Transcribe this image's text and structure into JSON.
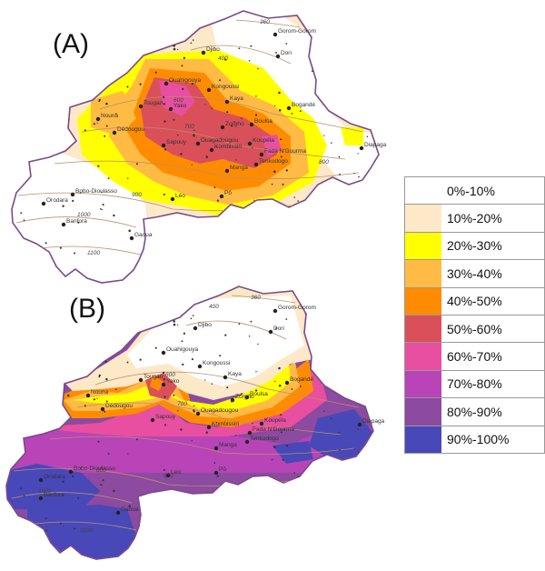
{
  "panels": [
    {
      "label": "(A)"
    },
    {
      "label": "(B)"
    }
  ],
  "legend": {
    "classes": [
      {
        "label": "0%-10%",
        "color": "#ffffff"
      },
      {
        "label": "10%-20%",
        "color": "#fde8c8"
      },
      {
        "label": "20%-30%",
        "color": "#ffff00"
      },
      {
        "label": "30%-40%",
        "color": "#ffbb44"
      },
      {
        "label": "40%-50%",
        "color": "#ff8c00"
      },
      {
        "label": "50%-60%",
        "color": "#d9505a"
      },
      {
        "label": "60%-70%",
        "color": "#e84fa0"
      },
      {
        "label": "70%-80%",
        "color": "#b844b8"
      },
      {
        "label": "80%-90%",
        "color": "#8c4aa0"
      },
      {
        "label": "90%-100%",
        "color": "#4848b8"
      }
    ]
  },
  "towns": [
    {
      "name": "Gorom-Gorom"
    },
    {
      "name": "Djibo"
    },
    {
      "name": "Dori"
    },
    {
      "name": "Ouahigouya"
    },
    {
      "name": "Kongoussi"
    },
    {
      "name": "Kaya"
    },
    {
      "name": "Tougan"
    },
    {
      "name": "Yako"
    },
    {
      "name": "Bogandé"
    },
    {
      "name": "Nouna"
    },
    {
      "name": "Dédougou"
    },
    {
      "name": "Zorgho"
    },
    {
      "name": "Boulsa"
    },
    {
      "name": "Ouagadougou"
    },
    {
      "name": "Koupéla"
    },
    {
      "name": "Diapaga"
    },
    {
      "name": "Sapouy"
    },
    {
      "name": "Kombissiri"
    },
    {
      "name": "Fada N'Gourma"
    },
    {
      "name": "Tenkodogo"
    },
    {
      "name": "Manga"
    },
    {
      "name": "Bobo-Dioulasso"
    },
    {
      "name": "Léo"
    },
    {
      "name": "Pô"
    },
    {
      "name": "Orodara"
    },
    {
      "name": "Banfora"
    },
    {
      "name": "Gaoua"
    }
  ],
  "isohyets": [
    "360",
    "400",
    "600",
    "700",
    "800",
    "900",
    "1000",
    "1100"
  ],
  "town_points": [
    {
      "name": "Gorom-Gorom",
      "a": [
        303,
        38
      ],
      "b": [
        303,
        342
      ]
    },
    {
      "name": "Djibo",
      "a": [
        224,
        58
      ],
      "b": [
        215,
        361
      ]
    },
    {
      "name": "Dori",
      "a": [
        306,
        62
      ],
      "b": [
        298,
        365
      ]
    },
    {
      "name": "Ouahigouya",
      "a": [
        183,
        92
      ],
      "b": [
        180,
        388
      ]
    },
    {
      "name": "Kongoussi",
      "a": [
        230,
        99
      ],
      "b": [
        220,
        403
      ]
    },
    {
      "name": "Kaya",
      "a": [
        250,
        112
      ],
      "b": [
        248,
        415
      ]
    },
    {
      "name": "Tougan",
      "a": [
        155,
        117
      ],
      "b": [
        155,
        418
      ]
    },
    {
      "name": "Yako",
      "a": [
        188,
        120
      ],
      "b": [
        180,
        423
      ]
    },
    {
      "name": "Bogandé",
      "a": [
        318,
        119
      ],
      "b": [
        316,
        421
      ]
    },
    {
      "name": "Nouna",
      "a": [
        108,
        131
      ],
      "b": [
        97,
        435
      ]
    },
    {
      "name": "Dédougou",
      "a": [
        126,
        146
      ],
      "b": [
        113,
        450
      ]
    },
    {
      "name": "Zorgho",
      "a": [
        245,
        140
      ],
      "b": [
        256,
        440
      ]
    },
    {
      "name": "Boulsa",
      "a": [
        277,
        137
      ],
      "b": [
        272,
        437
      ]
    },
    {
      "name": "Ouagadougou",
      "a": [
        218,
        158
      ],
      "b": [
        218,
        455
      ]
    },
    {
      "name": "Koupéla",
      "a": [
        275,
        158
      ],
      "b": [
        288,
        466
      ]
    },
    {
      "name": "Diapaga",
      "a": [
        398,
        163
      ],
      "b": [
        396,
        467
      ]
    },
    {
      "name": "Sapouy",
      "a": [
        180,
        160
      ],
      "b": [
        168,
        462
      ]
    },
    {
      "name": "Kombissiri",
      "a": [
        233,
        165
      ],
      "b": [
        230,
        470
      ]
    },
    {
      "name": "Fada N'Gourma",
      "a": [
        288,
        170
      ],
      "b": [
        275,
        476
      ]
    },
    {
      "name": "Tenkodogo",
      "a": [
        282,
        181
      ],
      "b": [
        272,
        486
      ]
    },
    {
      "name": "Manga",
      "a": [
        250,
        188
      ],
      "b": [
        238,
        493
      ]
    },
    {
      "name": "Bobo-Dioulasso",
      "a": [
        80,
        214
      ],
      "b": [
        78,
        519
      ]
    },
    {
      "name": "Léo",
      "a": [
        190,
        219
      ],
      "b": [
        185,
        523
      ]
    },
    {
      "name": "Pô",
      "a": [
        244,
        216
      ],
      "b": [
        238,
        520
      ]
    },
    {
      "name": "Orodara",
      "a": [
        48,
        224
      ],
      "b": [
        45,
        528
      ]
    },
    {
      "name": "Banfora",
      "a": [
        70,
        247
      ],
      "b": [
        45,
        548
      ]
    },
    {
      "name": "Gaoua",
      "a": [
        145,
        262
      ],
      "b": [
        130,
        564
      ]
    }
  ]
}
